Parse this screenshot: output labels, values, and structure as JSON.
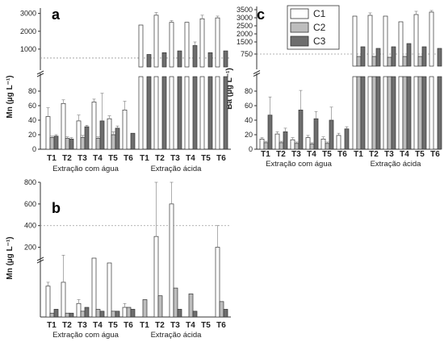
{
  "colors": {
    "C1": "#ffffff",
    "C2": "#bdbdbd",
    "C3": "#6e6e6e",
    "axis": "#333333",
    "ref_line": "#9a9a9a"
  },
  "legend": [
    "C1",
    "C2",
    "C3"
  ],
  "chart_data": [
    {
      "panel": "a",
      "type": "bar",
      "ylabel": "Mn (µg L⁻¹)",
      "categories": [
        "T1",
        "T2",
        "T3",
        "T4",
        "T5",
        "T6"
      ],
      "groups": [
        "Extração com água",
        "Extração ácida"
      ],
      "yticks_lower": [
        0,
        20,
        40,
        60,
        80
      ],
      "yticks_upper": [
        1000,
        2000,
        3000
      ],
      "ylim_lower": [
        0,
        100
      ],
      "ylim_upper": [
        0,
        3300
      ],
      "reference_line": 500,
      "series": {
        "agua": {
          "C1": [
            45,
            63,
            39,
            65,
            42,
            54
          ],
          "C2": [
            16,
            15,
            16,
            15,
            20,
            0
          ],
          "C3": [
            18,
            14,
            31,
            39,
            29,
            22
          ]
        },
        "acida": {
          "C1": [
            2350,
            2900,
            2500,
            2500,
            2700,
            2750
          ],
          "C2": [
            0,
            0,
            0,
            0,
            0,
            0
          ],
          "C3": [
            700,
            800,
            900,
            1200,
            800,
            900
          ]
        }
      },
      "errors": {
        "agua": {
          "C1": [
            12,
            5,
            8,
            4,
            4,
            12
          ],
          "C2": [
            2,
            2,
            3,
            2,
            4,
            0
          ],
          "C3": [
            2,
            2,
            2,
            38,
            3,
            0
          ]
        },
        "acida": {
          "C1": [
            0,
            150,
            100,
            0,
            200,
            100
          ],
          "C2": [
            0,
            0,
            0,
            0,
            0,
            0
          ],
          "C3": [
            0,
            0,
            0,
            200,
            0,
            0
          ]
        }
      }
    },
    {
      "panel": "b",
      "type": "bar",
      "ylabel": "Mn (µg L⁻¹)",
      "categories": [
        "T1",
        "T2",
        "T3",
        "T4",
        "T5",
        "T6"
      ],
      "groups": [
        "Extração com água",
        "Extração ácida"
      ],
      "yticks_upper": [
        200,
        400,
        600,
        800
      ],
      "ylim_upper": [
        100,
        800
      ],
      "reference_line": 400,
      "lower_scale_max": 28,
      "series": {
        "agua": {
          "C1": [
            16,
            18,
            7,
            29,
            28,
            5
          ],
          "C2": [
            2,
            2,
            3,
            4,
            3,
            5
          ],
          "C3": [
            4,
            2,
            5,
            3,
            3,
            4
          ]
        },
        "acida": {
          "C1": [
            0,
            300,
            600,
            0,
            0,
            200
          ],
          "C2": [
            9,
            11,
            15,
            12,
            0,
            8
          ],
          "C3": [
            0,
            0,
            4,
            3,
            0,
            4
          ]
        }
      },
      "errors": {
        "agua": {
          "C1": [
            2,
            14,
            2,
            0,
            0,
            2
          ],
          "C2": [
            0,
            0,
            0,
            0,
            0,
            0
          ],
          "C3": [
            0,
            0,
            0,
            0,
            0,
            0
          ]
        },
        "acida": {
          "C1": [
            0,
            500,
            200,
            0,
            0,
            200
          ],
          "C2": [
            0,
            0,
            0,
            0,
            0,
            0
          ],
          "C3": [
            0,
            0,
            0,
            0,
            0,
            0
          ]
        }
      }
    },
    {
      "panel": "c",
      "type": "bar",
      "ylabel": "Ba (µg L⁻¹)",
      "categories": [
        "T1",
        "T2",
        "T3",
        "T4",
        "T5",
        "T6"
      ],
      "groups": [
        "Extração com água",
        "Extração ácida"
      ],
      "yticks_lower": [
        0,
        20,
        40,
        60,
        80
      ],
      "yticks_upper": [
        750,
        1500,
        2000,
        2500,
        3000,
        3500
      ],
      "ylim_lower": [
        0,
        100
      ],
      "ylim_upper": [
        0,
        3700
      ],
      "reference_line": 750,
      "series": {
        "agua": {
          "C1": [
            14,
            21,
            13,
            16,
            14,
            19
          ],
          "C2": [
            9,
            9,
            8,
            7,
            8,
            0
          ],
          "C3": [
            47,
            24,
            54,
            42,
            40,
            28
          ]
        },
        "acida": {
          "C1": [
            3100,
            3150,
            3100,
            2750,
            3200,
            3350
          ],
          "C2": [
            600,
            600,
            550,
            600,
            600,
            0
          ],
          "C3": [
            1200,
            1100,
            1200,
            1400,
            1200,
            1100
          ]
        }
      },
      "errors": {
        "agua": {
          "C1": [
            2,
            3,
            3,
            3,
            3,
            3
          ],
          "C2": [
            2,
            2,
            2,
            2,
            2,
            0
          ],
          "C3": [
            25,
            5,
            27,
            10,
            18,
            3
          ]
        },
        "acida": {
          "C1": [
            0,
            150,
            0,
            0,
            200,
            100
          ],
          "C2": [
            0,
            0,
            0,
            0,
            0,
            0
          ],
          "C3": [
            0,
            0,
            0,
            0,
            0,
            0
          ]
        }
      }
    }
  ]
}
